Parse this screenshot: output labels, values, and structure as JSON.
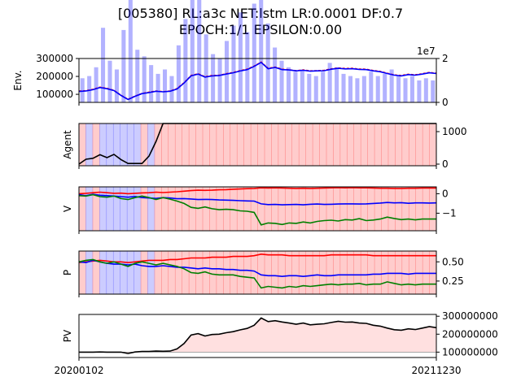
{
  "title_line1": "[005380] RL:a3c NET:lstm LR:0.0001 DF:0.7",
  "title_line2": "EPOCH:1/1 EPSILON:0.00",
  "chart_data": [
    {
      "type": "line",
      "panel": "env",
      "ylabel": "Env.",
      "ylim": [
        55000,
        300000
      ],
      "yticks": [
        "300000",
        "200000",
        "100000"
      ],
      "y2ticks": [
        "2",
        "0"
      ],
      "y2_offset_label": "1e7",
      "y2lim": [
        0,
        20000000
      ],
      "series": [
        {
          "color": "#ff0000",
          "style": "dashed",
          "values": [
            118000,
            120000,
            128000,
            140000,
            133000,
            122000,
            95000,
            72000,
            90000,
            105000,
            112000,
            118000,
            115000,
            118000,
            132000,
            165000,
            205000,
            215000,
            198000,
            205000,
            206000,
            215000,
            222000,
            232000,
            240000,
            258000,
            280000,
            245000,
            252000,
            240000,
            237000,
            232000,
            236000,
            231000,
            232000,
            234000,
            242000,
            247000,
            244000,
            245000,
            241000,
            240000,
            233000,
            228000,
            218000,
            208000,
            205000,
            212000,
            209000,
            215000,
            222000,
            218000
          ]
        },
        {
          "color": "#0000ff",
          "style": "solid",
          "values": [
            116000,
            119000,
            126000,
            138000,
            131000,
            121000,
            94000,
            71000,
            89000,
            104000,
            110000,
            117000,
            114000,
            117000,
            130000,
            163000,
            203000,
            213000,
            196000,
            203000,
            205000,
            213000,
            220000,
            230000,
            238000,
            256000,
            278000,
            243000,
            250000,
            238000,
            236000,
            231000,
            234000,
            229000,
            231000,
            232000,
            240000,
            245000,
            242000,
            243000,
            239000,
            238000,
            231000,
            226000,
            216000,
            207000,
            203000,
            210000,
            207000,
            213000,
            220000,
            216000
          ]
        }
      ],
      "volume_color": "#0000ff",
      "volume": [
        1.1,
        1.2,
        1.6,
        3.4,
        1.9,
        1.5,
        3.3,
        5.1,
        2.4,
        2.1,
        1.7,
        1.3,
        1.5,
        1.2,
        2.6,
        3.8,
        5.4,
        6.2,
        3.1,
        2.2,
        2.0,
        2.8,
        3.5,
        4.1,
        3.2,
        4.5,
        9.4,
        3.6,
        2.5,
        1.9,
        1.6,
        1.4,
        1.5,
        1.3,
        1.2,
        1.4,
        1.8,
        1.6,
        1.3,
        1.2,
        1.1,
        1.2,
        1.4,
        1.2,
        1.3,
        1.5,
        1.2,
        1.1,
        1.2,
        1.0,
        1.1,
        1.0
      ]
    },
    {
      "type": "line",
      "panel": "agent",
      "ylabel": "Agent",
      "ylim": [
        -50,
        1250
      ],
      "y2ticks": [
        "1000",
        "0"
      ],
      "series": [
        {
          "color": "#000000",
          "values": [
            0,
            150,
            180,
            290,
            200,
            300,
            140,
            20,
            20,
            20,
            250,
            700,
            1250,
            1250,
            1250,
            1250,
            1250,
            1250,
            1250,
            1250,
            1250,
            1250,
            1250,
            1250,
            1250,
            1250,
            1250,
            1250,
            1250,
            1250,
            1250,
            1250,
            1250,
            1250,
            1250,
            1250,
            1250,
            1250,
            1250,
            1250,
            1250,
            1250,
            1250,
            1250,
            1250,
            1250,
            1250,
            1250,
            1250,
            1250,
            1250,
            1250
          ]
        }
      ],
      "action_spans": [
        "buy",
        "sell",
        "buy",
        "sell",
        "hold",
        "hold",
        "hold",
        "hold",
        "hold",
        "buy",
        "sell",
        "buy",
        "buy",
        "buy",
        "buy",
        "buy",
        "buy",
        "buy",
        "buy",
        "buy",
        "buy",
        "buy",
        "buy",
        "buy",
        "buy",
        "buy",
        "buy",
        "buy",
        "buy",
        "buy",
        "buy",
        "buy",
        "buy",
        "buy",
        "buy",
        "buy",
        "buy",
        "buy",
        "buy",
        "buy",
        "buy",
        "buy",
        "buy",
        "buy",
        "buy",
        "buy",
        "buy",
        "buy",
        "buy",
        "buy",
        "buy",
        "buy"
      ]
    },
    {
      "type": "line",
      "panel": "value",
      "ylabel": "V",
      "ylim": [
        -1.9,
        0.35
      ],
      "y2ticks": [
        "0",
        "−1"
      ],
      "series": [
        {
          "color": "#ff0000",
          "values": [
            0.0,
            0.02,
            0.05,
            0.08,
            0.05,
            0.02,
            0.03,
            0.0,
            0.02,
            0.04,
            0.05,
            0.08,
            0.06,
            0.08,
            0.1,
            0.13,
            0.16,
            0.18,
            0.17,
            0.18,
            0.2,
            0.21,
            0.23,
            0.24,
            0.26,
            0.27,
            0.3,
            0.29,
            0.3,
            0.29,
            0.28,
            0.27,
            0.28,
            0.27,
            0.28,
            0.29,
            0.3,
            0.31,
            0.3,
            0.31,
            0.3,
            0.3,
            0.29,
            0.28,
            0.28,
            0.27,
            0.27,
            0.28,
            0.28,
            0.29,
            0.29,
            0.29
          ]
        },
        {
          "color": "#0000ff",
          "values": [
            -0.05,
            -0.1,
            -0.03,
            -0.08,
            -0.1,
            -0.12,
            -0.15,
            -0.18,
            -0.14,
            -0.2,
            -0.22,
            -0.24,
            -0.2,
            -0.22,
            -0.26,
            -0.25,
            -0.27,
            -0.3,
            -0.29,
            -0.3,
            -0.32,
            -0.33,
            -0.34,
            -0.36,
            -0.37,
            -0.38,
            -0.52,
            -0.56,
            -0.55,
            -0.57,
            -0.56,
            -0.55,
            -0.57,
            -0.54,
            -0.53,
            -0.55,
            -0.54,
            -0.53,
            -0.52,
            -0.52,
            -0.53,
            -0.52,
            -0.5,
            -0.48,
            -0.45,
            -0.47,
            -0.46,
            -0.49,
            -0.47,
            -0.47,
            -0.48,
            -0.47
          ]
        },
        {
          "color": "#008000",
          "values": [
            -0.1,
            -0.12,
            -0.05,
            -0.15,
            -0.18,
            -0.12,
            -0.25,
            -0.3,
            -0.2,
            -0.12,
            -0.2,
            -0.3,
            -0.2,
            -0.28,
            -0.38,
            -0.5,
            -0.7,
            -0.75,
            -0.68,
            -0.77,
            -0.82,
            -0.8,
            -0.82,
            -0.88,
            -0.9,
            -0.96,
            -1.6,
            -1.5,
            -1.52,
            -1.58,
            -1.5,
            -1.52,
            -1.45,
            -1.5,
            -1.42,
            -1.38,
            -1.36,
            -1.4,
            -1.33,
            -1.35,
            -1.28,
            -1.38,
            -1.35,
            -1.3,
            -1.2,
            -1.27,
            -1.33,
            -1.3,
            -1.34,
            -1.3,
            -1.3,
            -1.3
          ]
        }
      ],
      "background_color": "#ff0000"
    },
    {
      "type": "line",
      "panel": "policy",
      "ylabel": "P",
      "ylim": [
        0.08,
        0.64
      ],
      "y2ticks": [
        "0.50",
        "0.25"
      ],
      "series": [
        {
          "color": "#ff0000",
          "values": [
            0.49,
            0.5,
            0.51,
            0.52,
            0.51,
            0.5,
            0.5,
            0.49,
            0.5,
            0.51,
            0.52,
            0.52,
            0.52,
            0.53,
            0.53,
            0.54,
            0.55,
            0.55,
            0.55,
            0.56,
            0.56,
            0.56,
            0.57,
            0.57,
            0.57,
            0.58,
            0.6,
            0.59,
            0.59,
            0.59,
            0.58,
            0.58,
            0.58,
            0.58,
            0.58,
            0.58,
            0.59,
            0.59,
            0.59,
            0.59,
            0.59,
            0.59,
            0.58,
            0.58,
            0.58,
            0.58,
            0.58,
            0.58,
            0.58,
            0.58,
            0.58,
            0.58
          ]
        },
        {
          "color": "#0000ff",
          "values": [
            0.5,
            0.49,
            0.52,
            0.5,
            0.48,
            0.47,
            0.47,
            0.46,
            0.47,
            0.45,
            0.44,
            0.44,
            0.45,
            0.44,
            0.43,
            0.43,
            0.42,
            0.41,
            0.42,
            0.41,
            0.41,
            0.4,
            0.4,
            0.39,
            0.39,
            0.38,
            0.33,
            0.32,
            0.32,
            0.31,
            0.32,
            0.32,
            0.31,
            0.32,
            0.33,
            0.32,
            0.32,
            0.33,
            0.33,
            0.33,
            0.33,
            0.33,
            0.34,
            0.34,
            0.35,
            0.35,
            0.35,
            0.34,
            0.35,
            0.35,
            0.35,
            0.35
          ]
        },
        {
          "color": "#008000",
          "values": [
            0.5,
            0.52,
            0.53,
            0.5,
            0.48,
            0.5,
            0.47,
            0.44,
            0.48,
            0.5,
            0.48,
            0.46,
            0.48,
            0.46,
            0.44,
            0.41,
            0.36,
            0.35,
            0.37,
            0.34,
            0.33,
            0.33,
            0.33,
            0.31,
            0.3,
            0.29,
            0.16,
            0.18,
            0.17,
            0.16,
            0.18,
            0.17,
            0.19,
            0.18,
            0.19,
            0.2,
            0.21,
            0.2,
            0.21,
            0.21,
            0.22,
            0.2,
            0.21,
            0.21,
            0.24,
            0.22,
            0.2,
            0.21,
            0.2,
            0.21,
            0.21,
            0.21
          ]
        }
      ]
    },
    {
      "type": "area",
      "panel": "pv",
      "ylabel": "PV",
      "ylim": [
        70000000,
        310000000
      ],
      "y2ticks": [
        "300000000",
        "200000000",
        "100000000"
      ],
      "baseline": 100000000,
      "fill_color": "#ffe0e0",
      "series": [
        {
          "color": "#000000",
          "values": [
            100000000,
            100000000,
            100000000,
            101000000,
            100000000,
            100000000,
            100000000,
            92000000,
            101000000,
            104000000,
            104000000,
            106000000,
            105000000,
            106000000,
            118000000,
            148000000,
            195000000,
            203000000,
            190000000,
            198000000,
            200000000,
            208000000,
            214000000,
            224000000,
            232000000,
            250000000,
            290000000,
            270000000,
            275000000,
            268000000,
            262000000,
            255000000,
            262000000,
            252000000,
            255000000,
            258000000,
            265000000,
            272000000,
            267000000,
            268000000,
            262000000,
            260000000,
            250000000,
            245000000,
            234000000,
            225000000,
            222000000,
            230000000,
            226000000,
            234000000,
            242000000,
            236000000
          ]
        }
      ]
    }
  ],
  "xaxis": {
    "start_label": "20200102",
    "end_label": "20211230"
  }
}
